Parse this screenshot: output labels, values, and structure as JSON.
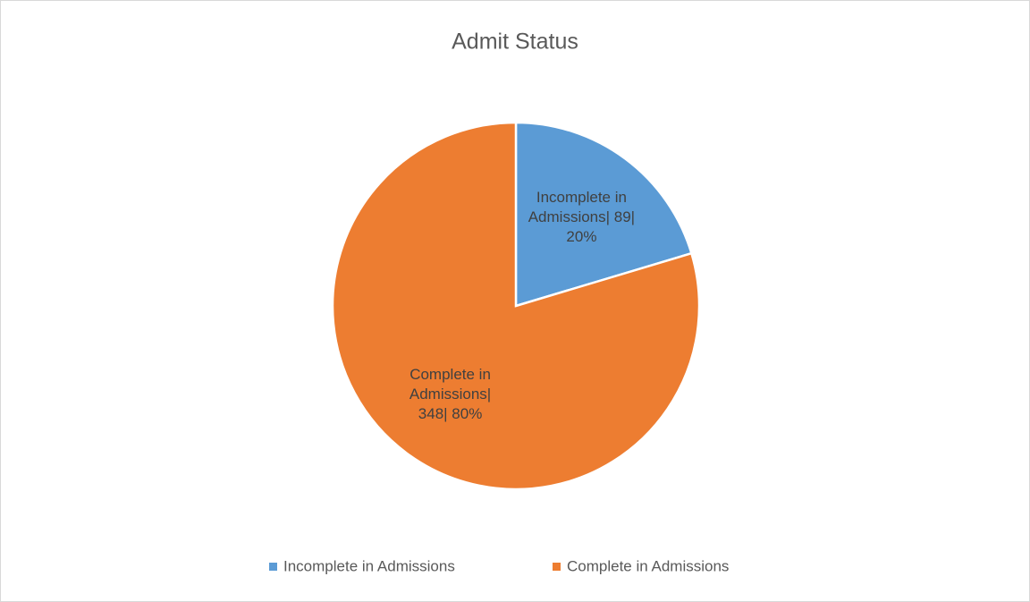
{
  "chart_data": {
    "type": "pie",
    "title": "Admit Status",
    "categories": [
      "Incomplete in Admissions",
      "Complete in Admissions"
    ],
    "values": [
      89,
      348
    ],
    "value_labels": [
      "Incomplete in Admissions| 89| 20%",
      "Complete in Admissions| 348| 80%"
    ],
    "colors": [
      "#5b9bd5",
      "#ed7d31"
    ],
    "legend": "bottom"
  }
}
